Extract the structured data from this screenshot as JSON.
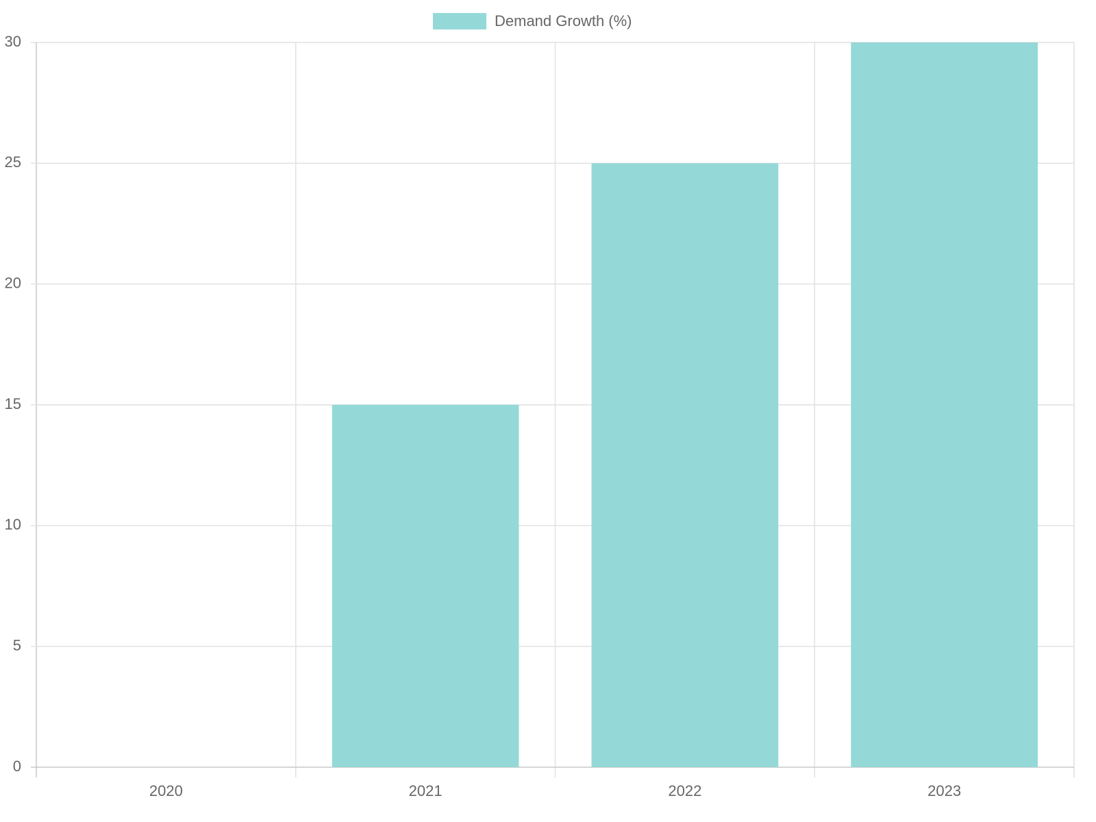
{
  "chart_data": {
    "type": "bar",
    "categories": [
      "2020",
      "2021",
      "2022",
      "2023"
    ],
    "series": [
      {
        "name": "Demand Growth (%)",
        "color": "#94d9d8",
        "values": [
          0,
          15,
          25,
          30
        ]
      }
    ],
    "ylim": [
      0,
      30
    ],
    "yticks": [
      0,
      5,
      10,
      15,
      20,
      25,
      30
    ],
    "grid": true,
    "legend": "top"
  }
}
